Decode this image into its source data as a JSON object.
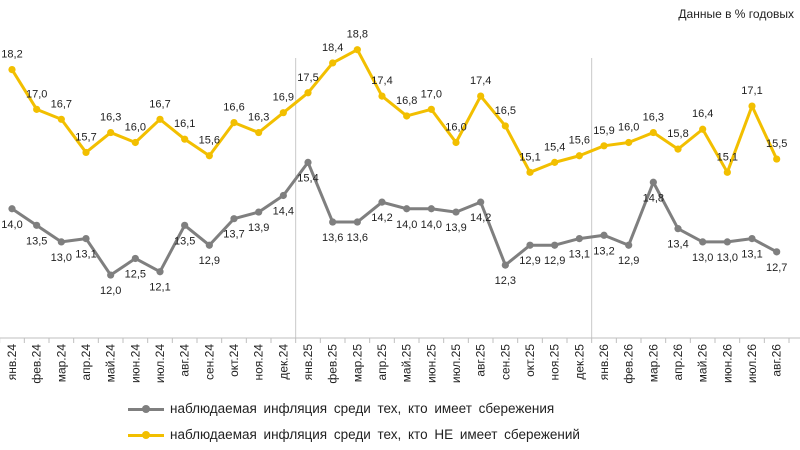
{
  "note": "Данные в % годовых",
  "colors": {
    "series1": "#7f7f7f",
    "series2": "#f2bf00"
  },
  "chart_data": {
    "type": "line",
    "categories": [
      "янв.24",
      "фев.24",
      "мар.24",
      "апр.24",
      "май.24",
      "июн.24",
      "июл.24",
      "авг.24",
      "сен.24",
      "окт.24",
      "ноя.24",
      "дек.24",
      "янв.25",
      "фев.25",
      "мар.25",
      "апр.25",
      "май.25",
      "июн.25",
      "июл.25",
      "авг.25",
      "сен.25",
      "окт.25",
      "ноя.25",
      "дек.25",
      "янв.26",
      "фев.26",
      "мар.26",
      "апр.26",
      "май.26",
      "июн.26",
      "июл.26",
      "авг.26"
    ],
    "series": [
      {
        "name": "наблюдаемая инфляция среди тех, кто имеет сбережения",
        "values": [
          14.0,
          13.5,
          13.0,
          13.1,
          12.0,
          12.5,
          12.1,
          13.5,
          12.9,
          13.7,
          13.9,
          14.4,
          15.4,
          13.6,
          13.6,
          14.2,
          14.0,
          14.0,
          13.9,
          14.2,
          12.3,
          12.9,
          12.9,
          13.1,
          13.2,
          12.9,
          14.8,
          13.4,
          13.0,
          13.0,
          13.1,
          12.7
        ],
        "labels": [
          "14,0",
          "13,5",
          "13,0",
          "13,1",
          "12,0",
          "12,5",
          "12,1",
          "13,5",
          "12,9",
          "13,7",
          "13,9",
          "14,4",
          "15,4",
          "13,6",
          "13,6",
          "14,2",
          "14,0",
          "14,0",
          "13,9",
          "14,2",
          "12,3",
          "12,9",
          "12,9",
          "13,1",
          "13,2",
          "12,9",
          "14,8",
          "13,4",
          "13,0",
          "13,0",
          "13,1",
          "12,7"
        ]
      },
      {
        "name": "наблюдаемая инфляция среди тех, кто НЕ имеет сбережений",
        "values": [
          18.2,
          17.0,
          16.7,
          15.7,
          16.3,
          16.0,
          16.7,
          16.1,
          15.6,
          16.6,
          16.3,
          16.9,
          17.5,
          18.4,
          18.8,
          17.4,
          16.8,
          17.0,
          16.0,
          17.4,
          16.5,
          15.1,
          15.4,
          15.6,
          15.9,
          16.0,
          16.3,
          15.8,
          16.4,
          15.1,
          17.1,
          15.5
        ],
        "labels": [
          "18,2",
          "17,0",
          "16,7",
          "15,7",
          "16,3",
          "16,0",
          "16,7",
          "16,1",
          "15,6",
          "16,6",
          "16,3",
          "16,9",
          "17,5",
          "18,4",
          "18,8",
          "17,4",
          "16,8",
          "17,0",
          "16,0",
          "17,4",
          "16,5",
          "15,1",
          "15,4",
          "15,6",
          "15,9",
          "16,0",
          "16,3",
          "15,8",
          "16,4",
          "15,1",
          "17,1",
          "15,5"
        ]
      }
    ],
    "ylim": [
      10.1,
      20.3
    ],
    "grid": false,
    "legend_position": "bottom"
  }
}
